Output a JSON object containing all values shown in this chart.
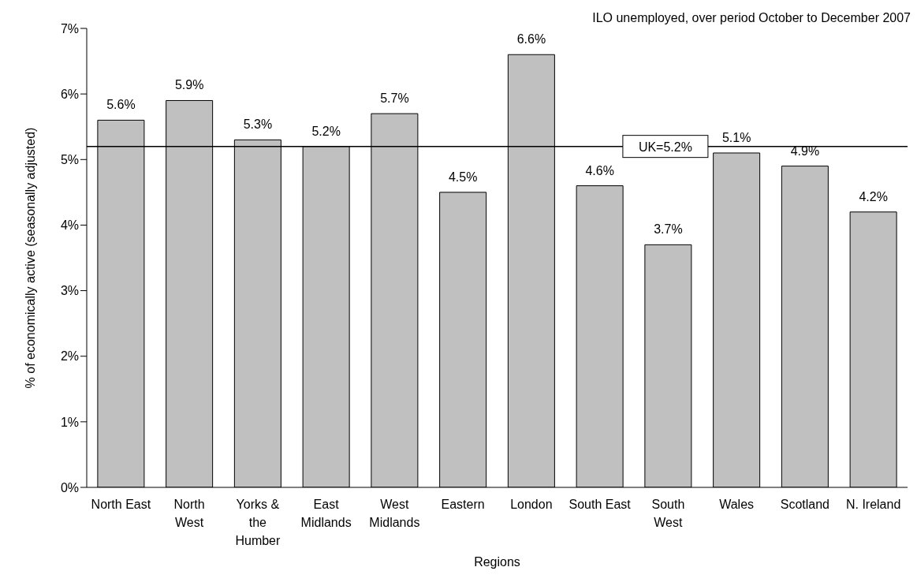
{
  "chart_data": {
    "type": "bar",
    "title": "ILO unemployed, over period October to December 2007",
    "xlabel": "Regions",
    "ylabel": "% of economically active (seasonally adjusted)",
    "categories": [
      "North East",
      "North West",
      "Yorks & the Humber",
      "East Midlands",
      "West Midlands",
      "Eastern",
      "London",
      "South East",
      "South West",
      "Wales",
      "Scotland",
      "N. Ireland"
    ],
    "values": [
      5.6,
      5.9,
      5.3,
      5.2,
      5.7,
      4.5,
      6.6,
      4.6,
      3.7,
      5.1,
      4.9,
      4.2
    ],
    "value_labels": [
      "5.6%",
      "5.9%",
      "5.3%",
      "5.2%",
      "5.7%",
      "4.5%",
      "6.6%",
      "4.6%",
      "3.7%",
      "5.1%",
      "4.9%",
      "4.2%"
    ],
    "color": "#c0c0c0",
    "ylim": [
      0,
      7
    ],
    "yticks": [
      {
        "value": 0,
        "label": "0%"
      },
      {
        "value": 1,
        "label": "1%"
      },
      {
        "value": 2,
        "label": "2%"
      },
      {
        "value": 3,
        "label": "3%"
      },
      {
        "value": 4,
        "label": "4%"
      },
      {
        "value": 5,
        "label": "5%"
      },
      {
        "value": 6,
        "label": "6%"
      },
      {
        "value": 7,
        "label": "7%"
      }
    ],
    "ref_lines": [
      {
        "axis": "y",
        "value": 5.2,
        "label": "UK=5.2%",
        "color": "#000000"
      }
    ],
    "grid": false,
    "legend": false
  }
}
